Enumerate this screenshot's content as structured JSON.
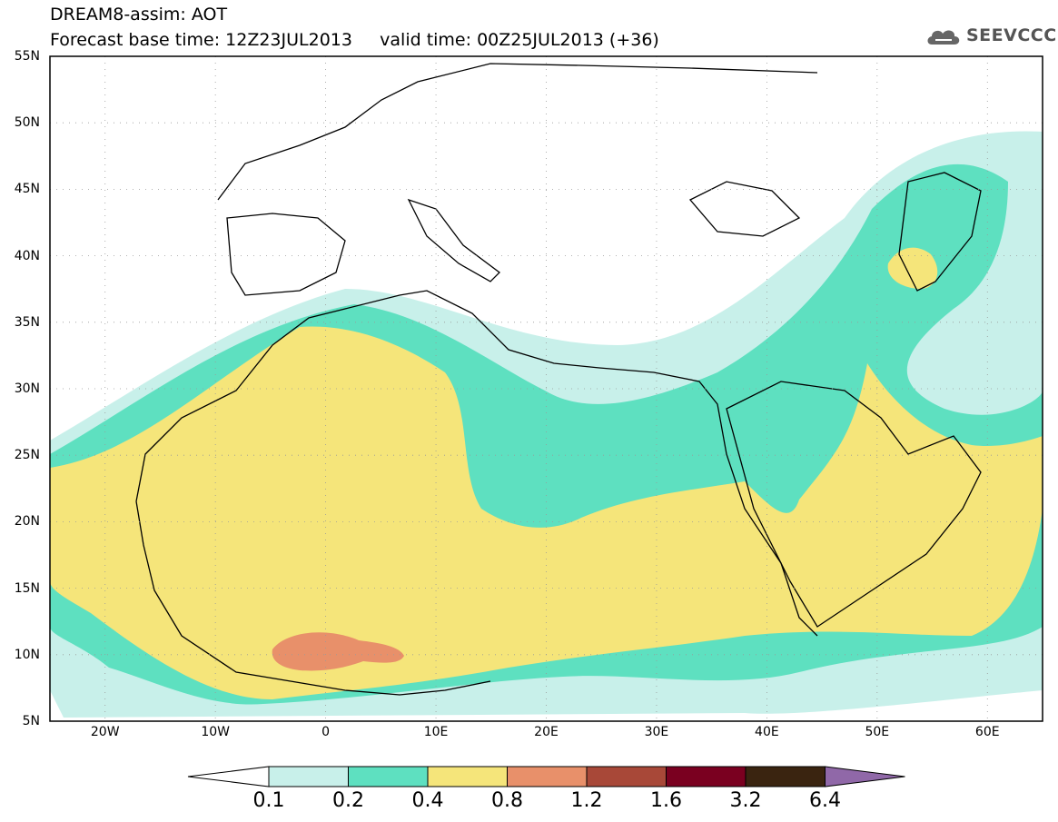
{
  "header": {
    "title_line1": "DREAM8-assim: AOT",
    "title_line2": "Forecast base time: 12Z23JUL2013     valid time: 00Z25JUL2013 (+36)",
    "logo_text": "SEEVCCC"
  },
  "map": {
    "lat_labels": [
      "55N",
      "50N",
      "45N",
      "40N",
      "35N",
      "30N",
      "25N",
      "20N",
      "15N",
      "10N",
      "5N"
    ],
    "lon_labels": [
      "20W",
      "10W",
      "0",
      "10E",
      "20E",
      "30E",
      "40E",
      "50E",
      "60E"
    ],
    "grid": true,
    "aot_field_bands": [
      "0.1-0.2",
      "0.2-0.4",
      "0.4-0.8",
      "0.8-1.2"
    ]
  },
  "colorbar": {
    "labels": [
      "0.1",
      "0.2",
      "0.4",
      "0.8",
      "1.2",
      "1.6",
      "3.2",
      "6.4"
    ],
    "colors": [
      "#ffffff",
      "#c8f0ea",
      "#5ee0c0",
      "#f5e57a",
      "#e8906a",
      "#a84838",
      "#7a0020",
      "#3a2410",
      "#9068a8"
    ]
  }
}
